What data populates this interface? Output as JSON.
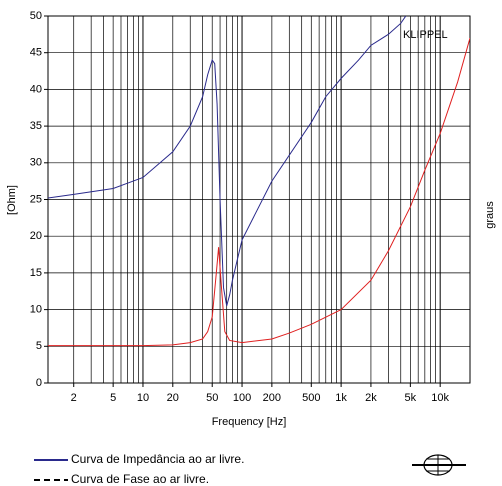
{
  "chart_data": {
    "type": "line",
    "xlabel": "Frequency [Hz]",
    "ylabel": "[Ohm]",
    "y2label": "graus",
    "annotation": "KLIPPEL",
    "annotation_color": "#3a3aa8",
    "xscale": "log",
    "grid": true,
    "xlim": [
      1.1,
      20000
    ],
    "ylim": [
      0,
      50
    ],
    "yticks": [
      0,
      5,
      10,
      15,
      20,
      25,
      30,
      35,
      40,
      45,
      50
    ],
    "xticks": [
      2,
      5,
      10,
      20,
      50,
      100,
      200,
      500,
      {
        "value": 1000,
        "label": "1k"
      },
      {
        "value": 2000,
        "label": "2k"
      },
      {
        "value": 5000,
        "label": "5k"
      },
      {
        "value": 10000,
        "label": "10k"
      }
    ],
    "series": [
      {
        "name": "Curva de Impedância ao ar livre.",
        "color": "#2a2a8c",
        "legend_color": "#2a2a8c",
        "legend_dash": false,
        "x": [
          1.1,
          2,
          5,
          10,
          20,
          30,
          40,
          45,
          50,
          53,
          56,
          60,
          65,
          70,
          75,
          80,
          100,
          200,
          500,
          700,
          1000,
          1500,
          2000,
          3000,
          4000,
          4500
        ],
        "values": [
          25.2,
          25.7,
          26.5,
          28,
          31.5,
          35,
          39,
          42,
          44,
          43.5,
          38,
          25,
          13,
          10.5,
          12,
          14,
          19.5,
          27.5,
          35.5,
          39,
          41.5,
          44,
          46,
          47.5,
          49,
          50
        ]
      },
      {
        "name": "Curva de Fase ao ar livre.",
        "color": "#e02020",
        "legend_color": "#000000",
        "legend_dash": true,
        "x": [
          1.1,
          10,
          20,
          30,
          40,
          45,
          50,
          55,
          58,
          62,
          67,
          75,
          100,
          200,
          300,
          500,
          1000,
          2000,
          3000,
          5000,
          7000,
          10000,
          15000,
          20000
        ],
        "values": [
          5.1,
          5.1,
          5.2,
          5.5,
          6,
          7,
          9,
          15,
          18.5,
          13,
          7,
          5.8,
          5.5,
          6,
          6.8,
          8,
          10,
          14,
          18,
          24,
          29,
          34,
          41,
          47
        ]
      }
    ]
  }
}
